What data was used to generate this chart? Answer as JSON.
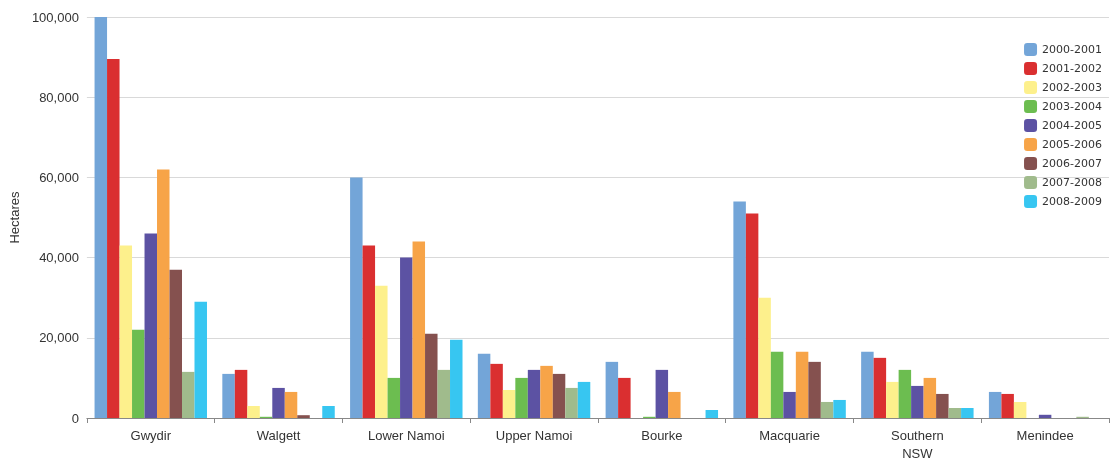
{
  "chart_data": {
    "type": "bar",
    "ylabel": "Hectares",
    "categories": [
      "Gwydir",
      "Walgett",
      "Lower Namoi",
      "Upper Namoi",
      "Bourke",
      "Macquarie",
      "Southern\nNSW",
      "Menindee"
    ],
    "series": [
      {
        "name": "2000-2001",
        "color": "#73a5d8",
        "values": [
          100000,
          11000,
          60000,
          16000,
          14000,
          54000,
          16500,
          6500
        ]
      },
      {
        "name": "2001-2002",
        "color": "#da2f30",
        "values": [
          89500,
          12000,
          43000,
          13500,
          10000,
          51000,
          15000,
          6000
        ]
      },
      {
        "name": "2002-2003",
        "color": "#fdf08c",
        "values": [
          43000,
          3000,
          33000,
          7000,
          0,
          30000,
          9000,
          4000
        ]
      },
      {
        "name": "2003-2004",
        "color": "#6cbd50",
        "values": [
          22000,
          300,
          10000,
          10000,
          300,
          16500,
          12000,
          0
        ]
      },
      {
        "name": "2004-2005",
        "color": "#5c52a3",
        "values": [
          46000,
          7500,
          40000,
          12000,
          12000,
          6500,
          8000,
          800
        ]
      },
      {
        "name": "2005-2006",
        "color": "#f7a448",
        "values": [
          62000,
          6500,
          44000,
          13000,
          6500,
          16500,
          10000,
          0
        ]
      },
      {
        "name": "2006-2007",
        "color": "#85514f",
        "values": [
          37000,
          700,
          21000,
          11000,
          0,
          14000,
          6000,
          0
        ]
      },
      {
        "name": "2007-2008",
        "color": "#a0bb8c",
        "values": [
          11500,
          0,
          12000,
          7500,
          0,
          4000,
          2500,
          300
        ]
      },
      {
        "name": "2008-2009",
        "color": "#37c6f1",
        "values": [
          29000,
          3000,
          19500,
          9000,
          2000,
          4500,
          2500,
          0
        ]
      }
    ],
    "ylim": [
      0,
      100000
    ],
    "yticks": [
      0,
      {
        "value": 20000,
        "label": "20,000"
      },
      {
        "value": 40000,
        "label": "40,000"
      },
      {
        "value": 60000,
        "label": "60,000"
      },
      {
        "value": 80000,
        "label": "80,000"
      },
      {
        "value": 100000,
        "label": "100,000"
      }
    ],
    "grid": "y",
    "legend": "top right"
  }
}
